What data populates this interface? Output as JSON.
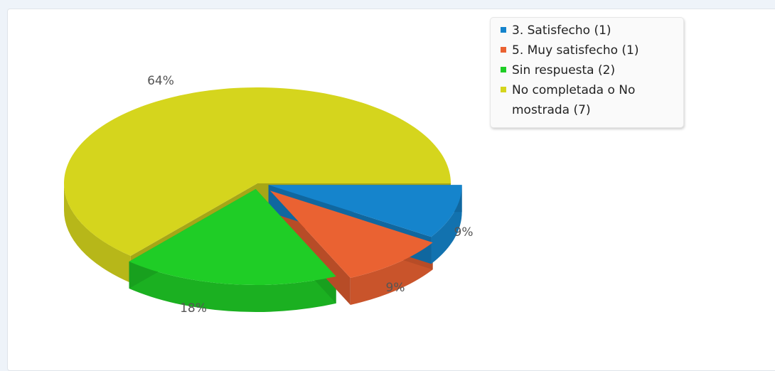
{
  "chart_data": {
    "type": "pie",
    "title": "",
    "style": "3d-exploded",
    "slices": [
      {
        "legend": "3. Satisfecho (1)",
        "value": 1,
        "label": "9%",
        "color": "#1584cc"
      },
      {
        "legend": "5. Muy satisfecho (1)",
        "value": 1,
        "label": "9%",
        "color": "#ea6232"
      },
      {
        "legend": "Sin respuesta (2)",
        "value": 2,
        "label": "18%",
        "color": "#1fcd26"
      },
      {
        "legend": "No completada o No mostrada (7)",
        "value": 7,
        "label": "64%",
        "color": "#d5d51d"
      }
    ],
    "legend_position": "top-right"
  }
}
